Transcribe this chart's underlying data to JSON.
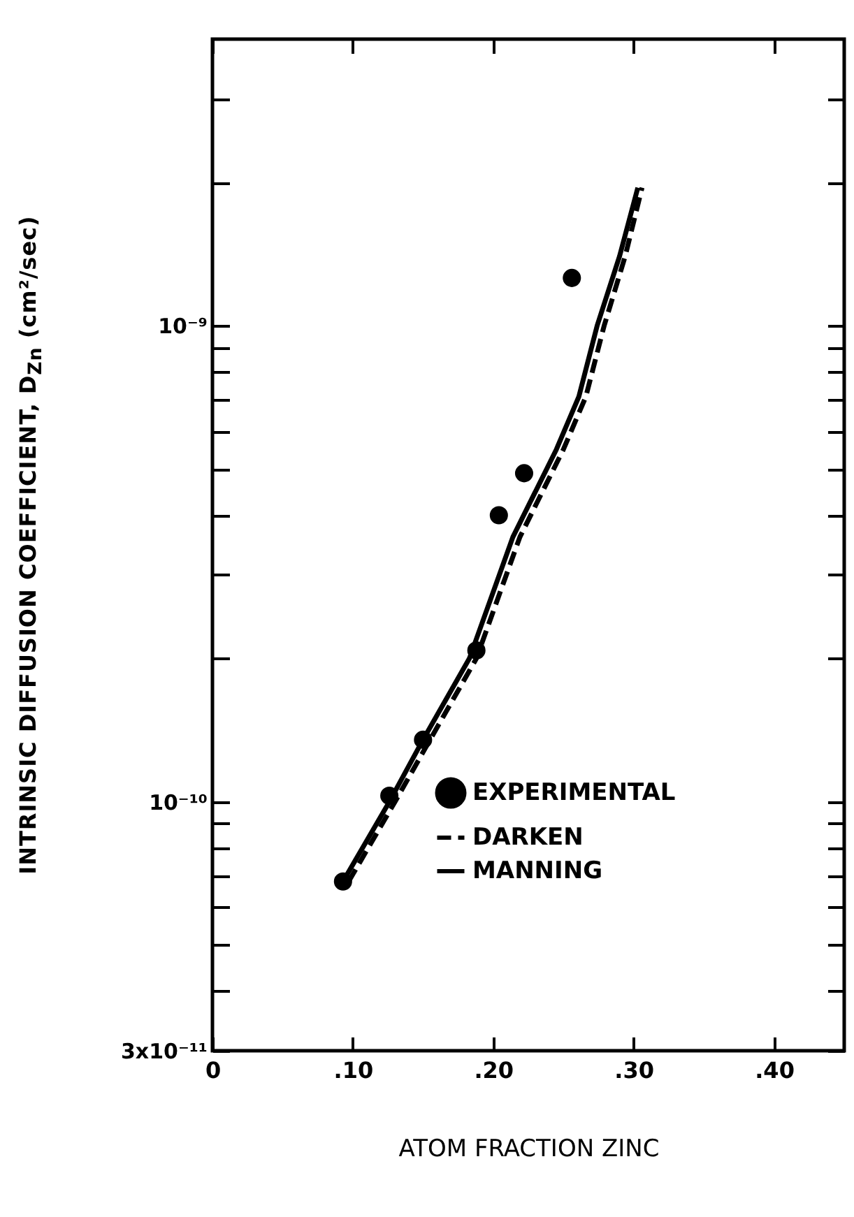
{
  "chart_data": {
    "type": "line",
    "xlabel": "ATOM FRACTION ZINC",
    "ylabel": "INTRINSIC DIFFUSION COEFFICIENT, D$_{Zn}$ (cm²/sec)",
    "log": "y",
    "xlim": [
      0,
      0.45
    ],
    "xticks": [
      0,
      {
        "value": 0.1,
        "label": ".10"
      },
      {
        "value": 0.2,
        "label": ".20"
      },
      {
        "value": 0.3,
        "label": ".30"
      },
      {
        "value": 0.4,
        "label": ".40"
      }
    ],
    "ylim": [
      3e-11,
      4e-09
    ],
    "yticks": [
      {
        "value": 3e-11,
        "label": "3x10⁻¹¹"
      },
      {
        "value": 4e-11,
        "label": null
      },
      {
        "value": 5e-11,
        "label": null
      },
      {
        "value": 6e-11,
        "label": null
      },
      {
        "value": 7e-11,
        "label": null
      },
      {
        "value": 8e-11,
        "label": null
      },
      {
        "value": 9e-11,
        "label": null
      },
      {
        "value": 1e-10,
        "label": "10⁻¹⁰"
      },
      {
        "value": 2e-10,
        "label": null
      },
      {
        "value": 3e-10,
        "label": null
      },
      {
        "value": 4e-10,
        "label": null
      },
      {
        "value": 5e-10,
        "label": null
      },
      {
        "value": 6e-10,
        "label": null
      },
      {
        "value": 7e-10,
        "label": null
      },
      {
        "value": 8e-10,
        "label": null
      },
      {
        "value": 9e-10,
        "label": null
      },
      {
        "value": 1e-09,
        "label": "10⁻⁹"
      },
      {
        "value": 2e-09,
        "label": null
      },
      {
        "value": 3e-09,
        "label": null
      }
    ],
    "legend": "bottom right",
    "series": [
      {
        "name": "EXPERIMENTAL",
        "type": "scatter",
        "marker": "circle",
        "color": "#000000",
        "x": [
          0.093,
          0.126,
          0.15,
          0.188,
          0.204,
          0.222,
          0.256
        ],
        "values": [
          6.8e-11,
          1.03e-10,
          1.35e-10,
          2.08e-10,
          4e-10,
          4.9e-10,
          1.26e-09
        ]
      },
      {
        "name": "DARKEN",
        "line_style": "dashed",
        "color": "#000000",
        "x": [
          0.097,
          0.13,
          0.155,
          0.188,
          0.219,
          0.25,
          0.266,
          0.279,
          0.294,
          0.306
        ],
        "values": [
          6.8e-11,
          1e-10,
          1.35e-10,
          2e-10,
          3.6e-10,
          5.5e-10,
          7.1e-10,
          1e-09,
          1.4e-09,
          1.95e-09
        ]
      },
      {
        "name": "MANNING",
        "line_style": "solid",
        "color": "#000000",
        "x": [
          0.093,
          0.126,
          0.15,
          0.183,
          0.214,
          0.245,
          0.261,
          0.274,
          0.29,
          0.303
        ],
        "values": [
          6.8e-11,
          1e-10,
          1.35e-10,
          2e-10,
          3.6e-10,
          5.5e-10,
          7.1e-10,
          1e-09,
          1.4e-09,
          1.95e-09
        ]
      }
    ]
  }
}
